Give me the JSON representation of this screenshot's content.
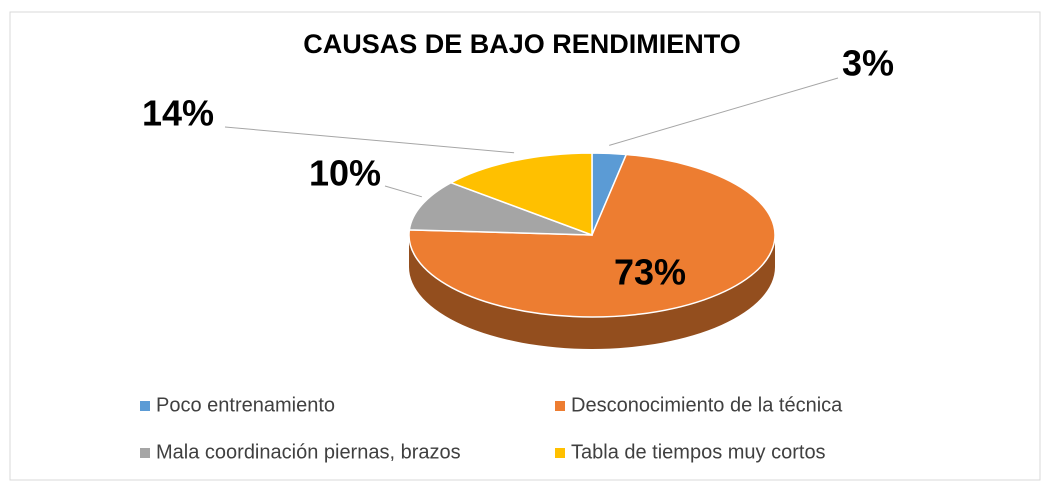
{
  "chart_data": {
    "type": "pie",
    "title": "CAUSAS DE BAJO RENDIMIENTO",
    "categories": [
      "Poco entrenamiento",
      "Desconocimiento de la técnica",
      "Mala coordinación piernas, brazos",
      "Tabla de tiempos muy cortos"
    ],
    "values": [
      3,
      73,
      10,
      14
    ],
    "value_labels": [
      "3%",
      "73%",
      "10%",
      "14%"
    ],
    "colors": [
      "#5b9bd5",
      "#ed7d31",
      "#a5a5a5",
      "#ffc000"
    ],
    "legend": "bottom"
  }
}
